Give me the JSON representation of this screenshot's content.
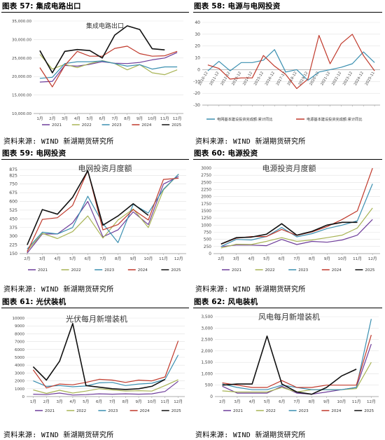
{
  "panels": [
    {
      "header": "图表 57: 集成电路出口",
      "source": "资料来源: WIND 新湖期货研究所",
      "chart_data": {
        "type": "line",
        "title": "集成电路出口",
        "categories": [
          "1月",
          "2月",
          "3月",
          "4月",
          "5月",
          "6月",
          "7月",
          "8月",
          "9月",
          "10月",
          "11月",
          "12月"
        ],
        "yticks": [
          "15,000.00",
          "20,000.00",
          "25,000.00",
          "30,000.00",
          "35,000.00"
        ],
        "yticks_raw": [
          15000,
          20000,
          25000,
          30000,
          35000
        ],
        "ylim": [
          10000,
          35000
        ],
        "y_tick_labels_all": [
          "10,000.00",
          "15,000.00",
          "20,000.00",
          "25,000.00",
          "30,000.00",
          "35,000.00"
        ],
        "legend_position": "bottom",
        "series": [
          {
            "name": "2021",
            "color": "#6e3d9a",
            "values": [
              18500,
              18700,
              23000,
              22800,
              23300,
              24000,
              23600,
              23500,
              23800,
              24500,
              25000,
              26500
            ]
          },
          {
            "name": "2022",
            "color": "#a8b455",
            "values": [
              26000,
              22000,
              23300,
              22400,
              23500,
              24300,
              23500,
              21800,
              23200,
              21000,
              20500,
              21800
            ]
          },
          {
            "name": "2023",
            "color": "#3a8fb0",
            "values": [
              19500,
              19800,
              23500,
              24000,
              24000,
              24200,
              23500,
              22800,
              23200,
              22000,
              22600,
              22600
            ]
          },
          {
            "name": "2024",
            "color": "#c0392b",
            "values": [
              22400,
              17200,
              23000,
              26800,
              25500,
              25500,
              27600,
              28200,
              26200,
              25500,
              25600,
              26800
            ]
          },
          {
            "name": "2025",
            "color": "#111111",
            "values": [
              27000,
              21000,
              26800,
              27300,
              27000,
              25000,
              31200,
              33700,
              32700,
              27500,
              27200,
              null
            ]
          },
          {
            "name": "",
            "color": "#8e44ad",
            "values": [
              null,
              null,
              null,
              null,
              null,
              null,
              null,
              null,
              null,
              null,
              null,
              null
            ]
          }
        ]
      }
    },
    {
      "header": "图表 58: 电源与电网投资",
      "source": "资料来源: WIND 新湖期货研究所",
      "chart_data": {
        "type": "line",
        "title": "",
        "categories": [
          "2010-12",
          "2011-12",
          "2012-12",
          "2013-12",
          "2014-12",
          "2015-12",
          "2016-12",
          "2017-12",
          "2018-12",
          "2019-12",
          "2020-12",
          "2021-12",
          "2022-12",
          "2023-12",
          "2024-12",
          "2025-11"
        ],
        "yticks": [
          40,
          30,
          20,
          10,
          0,
          -10,
          -20,
          -30
        ],
        "ylim": [
          -30,
          40
        ],
        "legend_position": "bottom",
        "series": [
          {
            "name": "电网基本建设投资完成额:累计同比",
            "color": "#3a8fb0",
            "values": [
              -1,
              7,
              -1,
              6,
              6,
              8,
              17,
              -2,
              0,
              -9,
              -2,
              0,
              2,
              5,
              15,
              6
            ]
          },
          {
            "name": "电源基本建设投资完成额:累计同比",
            "color": "#c0392b",
            "values": [
              4,
              1,
              -8,
              -7,
              -7,
              12,
              3,
              -4,
              -16,
              -8,
              29,
              5,
              22,
              30,
              12,
              -1
            ]
          }
        ]
      }
    },
    {
      "header": "图表 59: 电网投资",
      "source": "资料来源: WIND 新湖期货研究所",
      "chart_data": {
        "type": "line",
        "title": "电网投资月度额",
        "categories": [
          "2月",
          "3月",
          "4月",
          "5月",
          "6月",
          "7月",
          "8月",
          "9月",
          "10月",
          "11月",
          "12月"
        ],
        "yticks": [
          150,
          225,
          300,
          375,
          450,
          525,
          600,
          675,
          750,
          825,
          875
        ],
        "ylim": [
          150,
          875
        ],
        "legend_position": "bottom",
        "series": [
          {
            "name": "2021",
            "color": "#6e3d9a",
            "values": [
              155,
              320,
              320,
              415,
              600,
              295,
              355,
              510,
              400,
              750,
              815
            ]
          },
          {
            "name": "2022",
            "color": "#a8b455",
            "values": [
              175,
              325,
              280,
              340,
              475,
              285,
              440,
              535,
              375,
              700,
              835
            ]
          },
          {
            "name": "2023",
            "color": "#3a8fb0",
            "values": [
              190,
              335,
              320,
              375,
              645,
              410,
              245,
              575,
              500,
              705,
              835
            ]
          },
          {
            "name": "2024",
            "color": "#c0392b",
            "values": [
              165,
              445,
              460,
              565,
              865,
              355,
              400,
              530,
              440,
              790,
              800
            ]
          },
          {
            "name": "2025",
            "color": "#111111",
            "values": [
              225,
              530,
              490,
              635,
              865,
              395,
              475,
              580,
              480,
              null,
              null
            ]
          }
        ]
      }
    },
    {
      "header": "图表 60: 电源投资",
      "source": "资料来源: WIND 新湖期货研究所",
      "chart_data": {
        "type": "line",
        "title": "电源投资月度额",
        "categories": [
          "2月",
          "3月",
          "4月",
          "5月",
          "6月",
          "7月",
          "8月",
          "9月",
          "10月",
          "11月",
          "12月"
        ],
        "yticks": [
          0,
          250,
          500,
          750,
          1000,
          1250,
          1500,
          1750,
          2000,
          2250,
          2500,
          2750,
          3000
        ],
        "ylim": [
          0,
          3000
        ],
        "legend_position": "bottom",
        "series": [
          {
            "name": "2021",
            "color": "#6e3d9a",
            "values": [
              250,
              300,
              300,
              280,
              500,
              320,
              430,
              400,
              480,
              650,
              1200
            ]
          },
          {
            "name": "2022",
            "color": "#a8b455",
            "values": [
              200,
              330,
              320,
              430,
              560,
              430,
              480,
              560,
              650,
              900,
              1600
            ]
          },
          {
            "name": "2023",
            "color": "#3a8fb0",
            "values": [
              250,
              500,
              480,
              600,
              920,
              590,
              700,
              880,
              1000,
              1150,
              2450
            ]
          },
          {
            "name": "2024",
            "color": "#c0392b",
            "values": [
              330,
              540,
              600,
              600,
              850,
              640,
              760,
              950,
              1200,
              1500,
              3000
            ]
          },
          {
            "name": "2025",
            "color": "#111111",
            "values": [
              340,
              560,
              580,
              680,
              1050,
              650,
              780,
              1000,
              1100,
              1100,
              null
            ]
          }
        ]
      }
    },
    {
      "header": "图表 61: 光伏装机",
      "source": "资料来源: WIND 新湖期货研究所",
      "chart_data": {
        "type": "line",
        "title": "光伏每月新增装机",
        "categories": [
          "1月",
          "2月",
          "3月",
          "4月",
          "5月",
          "6月",
          "7月",
          "8月",
          "9月",
          "10月",
          "11月",
          "12月"
        ],
        "yticks": [
          0,
          1000,
          2000,
          3000,
          4000,
          5000,
          6000,
          7000,
          8000,
          9000,
          10000
        ],
        "ylim": [
          0,
          10000
        ],
        "legend_position": "bottom",
        "series": [
          {
            "name": "2021",
            "color": "#6e3d9a",
            "values": [
              300,
              250,
              450,
              200,
              250,
              350,
              300,
              350,
              300,
              350,
              650,
              1950
            ]
          },
          {
            "name": "2022",
            "color": "#a8b455",
            "values": [
              850,
              400,
              800,
              450,
              700,
              1000,
              850,
              700,
              750,
              700,
              1400,
              2150
            ]
          },
          {
            "name": "2023",
            "color": "#3a8fb0",
            "values": [
              2000,
              1300,
              1400,
              1250,
              1350,
              1750,
              1800,
              1400,
              1600,
              1700,
              2200,
              5300
            ]
          },
          {
            "name": "2024",
            "color": "#c0392b",
            "values": [
              3400,
              1100,
              1600,
              1500,
              1800,
              2200,
              2100,
              1800,
              2100,
              2000,
              2500,
              7100
            ]
          },
          {
            "name": "2025",
            "color": "#111111",
            "values": [
              3800,
              2100,
              4500,
              9300,
              1400,
              1200,
              1000,
              900,
              1000,
              1300,
              2200,
              null
            ]
          }
        ]
      }
    },
    {
      "header": "图表 62: 风电装机",
      "source": "资料来源: WIND 新湖期货研究所",
      "chart_data": {
        "type": "line",
        "title": "风电每月新增装机",
        "categories": [
          "2月",
          "3月",
          "4月",
          "5月",
          "6月",
          "7月",
          "8月",
          "9月",
          "10月",
          "11月",
          "12月"
        ],
        "yticks": [
          "0",
          "500",
          "1,000",
          "1,500",
          "2,000",
          "2,500",
          "3,000",
          "3,500"
        ],
        "yticks_raw": [
          0,
          500,
          1000,
          1500,
          2000,
          2500,
          3000,
          3500
        ],
        "ylim": [
          0,
          3500
        ],
        "legend_position": "bottom",
        "series": [
          {
            "name": "2021",
            "color": "#6e3d9a",
            "values": [
              450,
              150,
              150,
              150,
              450,
              150,
              100,
              200,
              300,
              400,
              2300
            ]
          },
          {
            "name": "2022",
            "color": "#a8b455",
            "values": [
              250,
              200,
              200,
              200,
              400,
              200,
              300,
              300,
              300,
              350,
              1500
            ]
          },
          {
            "name": "2023",
            "color": "#3a8fb0",
            "values": [
              550,
              400,
              300,
              300,
              500,
              400,
              300,
              300,
              300,
              400,
              3400
            ]
          },
          {
            "name": "2024",
            "color": "#c0392b",
            "values": [
              600,
              500,
              400,
              400,
              700,
              400,
              400,
              500,
              500,
              500,
              2700
            ]
          },
          {
            "name": "2025",
            "color": "#111111",
            "values": [
              500,
              550,
              550,
              2650,
              550,
              200,
              100,
              400,
              900,
              1200,
              null
            ]
          }
        ]
      }
    }
  ]
}
